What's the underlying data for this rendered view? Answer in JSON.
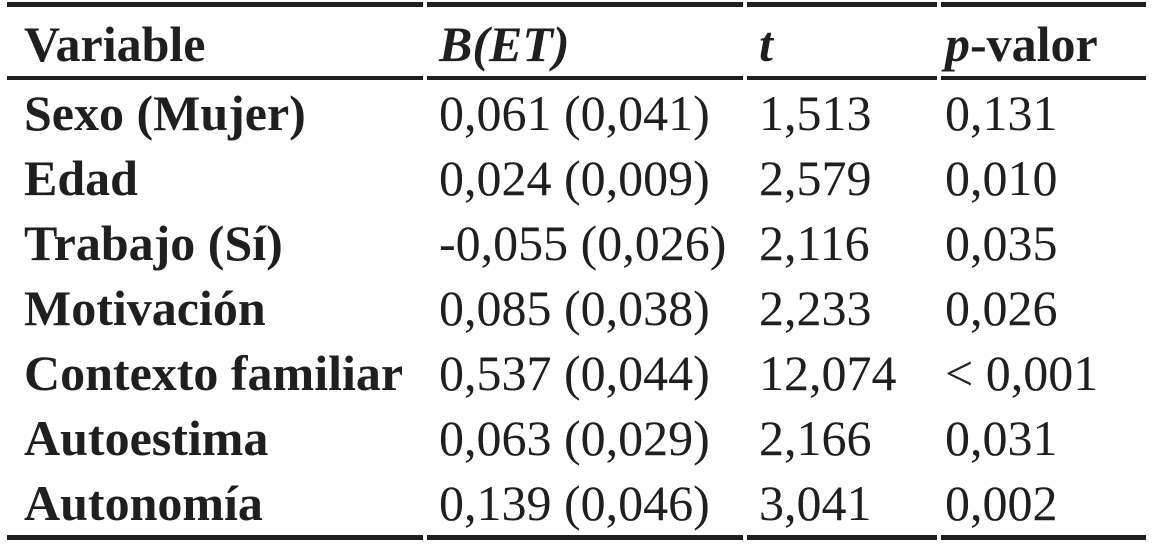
{
  "table": {
    "headers": {
      "variable": "Variable",
      "b_et": "B(ET)",
      "t": "t",
      "p_prefix": "p",
      "p_suffix": "-valor"
    },
    "rows": [
      {
        "variable": "Sexo (Mujer)",
        "b_et": "0,061 (0,041)",
        "t": "1,513",
        "p": "0,131"
      },
      {
        "variable": "Edad",
        "b_et": "0,024 (0,009)",
        "t": "2,579",
        "p": "0,010"
      },
      {
        "variable": "Trabajo (Sí)",
        "b_et": "-0,055 (0,026)",
        "t": "2,116",
        "p": "0,035"
      },
      {
        "variable": "Motivación",
        "b_et": "0,085 (0,038)",
        "t": "2,233",
        "p": "0,026"
      },
      {
        "variable": "Contexto familiar",
        "b_et": "0,537 (0,044)",
        "t": "12,074",
        "p": "< 0,001"
      },
      {
        "variable": "Autoestima",
        "b_et": "0,063 (0,029)",
        "t": "2,166",
        "p": "0,031"
      },
      {
        "variable": "Autonomía",
        "b_et": "0,139 (0,046)",
        "t": "3,041",
        "p": "0,002"
      }
    ]
  },
  "colors": {
    "text": "#1f1f1f",
    "rule": "#1f1f1f",
    "background": "#ffffff"
  }
}
